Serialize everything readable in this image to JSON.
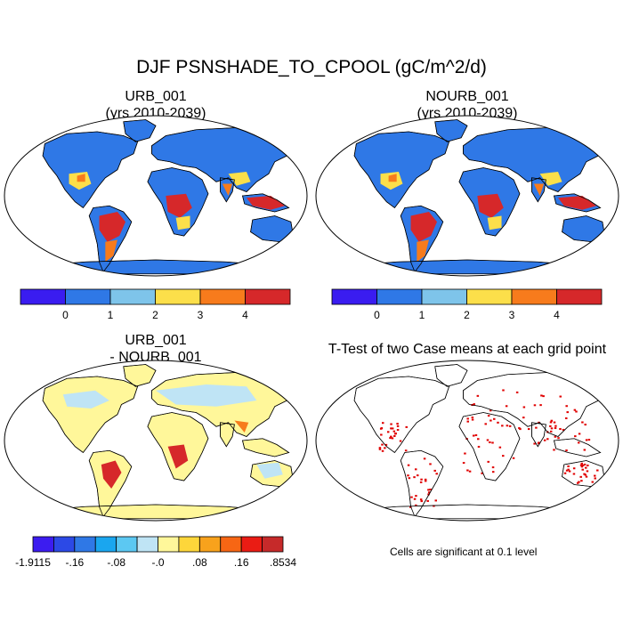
{
  "figure": {
    "title": "DJF PSNSHADE_TO_CPOOL (gC/m^2/d)"
  },
  "panels": [
    {
      "id": "urb",
      "title_line1": "URB_001",
      "title_line2": "(yrs 2010-2039)"
    },
    {
      "id": "nourb",
      "title_line1": "NOURB_001",
      "title_line2": "(yrs 2010-2039)"
    },
    {
      "id": "diff",
      "title_line1": "URB_001",
      "title_line2": "- NOURB_001"
    },
    {
      "id": "ttest",
      "title_line1": "T-Test of two Case means at each grid point",
      "note": "Cells are significant at 0.1 level"
    }
  ],
  "colorbars": {
    "absolute": {
      "colors": [
        "#3a1cf0",
        "#2f78e6",
        "#7ec4ea",
        "#fcdf4a",
        "#f77b1c",
        "#d6282a"
      ],
      "labels": [
        "0",
        "1",
        "2",
        "3",
        "4"
      ]
    },
    "difference": {
      "colors": [
        "#3c1cf0",
        "#2c49e6",
        "#2f78e6",
        "#1aa6ef",
        "#5cc8f2",
        "#bfe4f5",
        "#fff79a",
        "#fdd63a",
        "#f8a21c",
        "#f76614",
        "#ea1c14",
        "#c62a2a"
      ],
      "labels": [
        "-1.9115",
        "-.16",
        "-.08",
        "-.0",
        ".08",
        ".16",
        ".8534"
      ]
    }
  },
  "map_colors": {
    "ocean": "#ffffff",
    "land_base": "#2f78e6",
    "tropics_high": "#d6282a",
    "tropics_mid": "#f77b1c",
    "subtropics": "#fcdf4a",
    "diff_base": "#fff79a",
    "diff_light": "#bfe4f5",
    "significant": "#e00000"
  }
}
